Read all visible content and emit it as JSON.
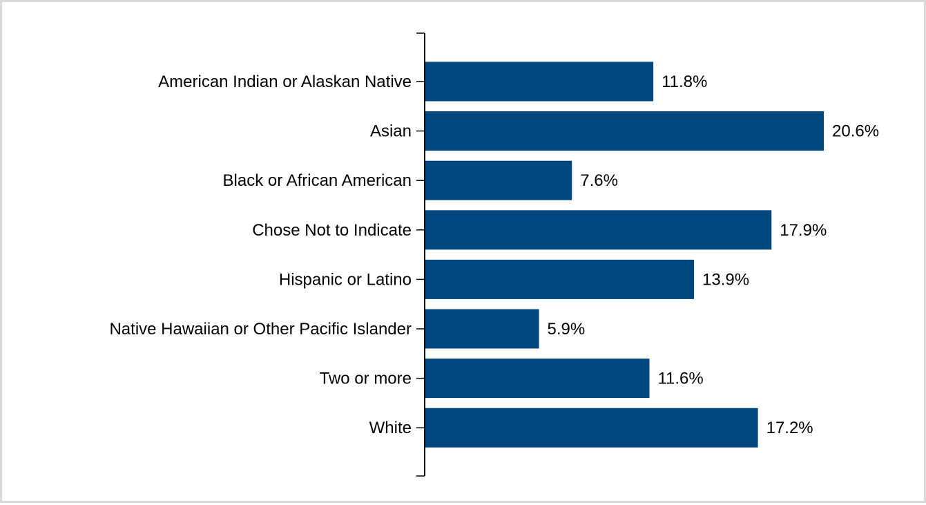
{
  "chart_data": {
    "type": "bar",
    "orientation": "horizontal",
    "categories": [
      "American Indian or Alaskan Native",
      "Asian",
      "Black or African American",
      "Chose Not to Indicate",
      "Hispanic or Latino",
      "Native Hawaiian or Other Pacific Islander",
      "Two or more",
      "White"
    ],
    "values": [
      11.8,
      20.6,
      7.6,
      17.9,
      13.9,
      5.9,
      11.6,
      17.2
    ],
    "value_labels": [
      "11.8%",
      "20.6%",
      "7.6%",
      "17.9%",
      "13.9%",
      "5.9%",
      "11.6%",
      "17.2%"
    ],
    "xlim": [
      0,
      20.6
    ],
    "bar_color": "#00467f",
    "grid": false,
    "legend": "none"
  }
}
